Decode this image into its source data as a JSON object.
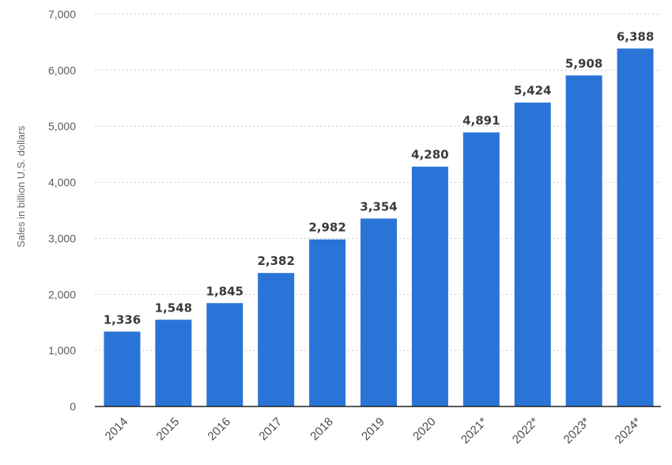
{
  "chart_data": {
    "type": "bar",
    "categories": [
      "2014",
      "2015",
      "2016",
      "2017",
      "2018",
      "2019",
      "2020",
      "2021*",
      "2022*",
      "2023*",
      "2024*"
    ],
    "values": [
      1336,
      1548,
      1845,
      2382,
      2982,
      3354,
      4280,
      4891,
      5424,
      5908,
      6388
    ],
    "value_labels": [
      "1,336",
      "1,548",
      "1,845",
      "2,382",
      "2,982",
      "3,354",
      "4,280",
      "4,891",
      "5,424",
      "5,908",
      "6,388"
    ],
    "title": "",
    "xlabel": "",
    "ylabel": "Sales in billion U.S. dollars",
    "ylim": [
      0,
      7000
    ],
    "yticks": [
      0,
      1000,
      2000,
      3000,
      4000,
      5000,
      6000,
      7000
    ],
    "ytick_labels": [
      "0",
      "1,000",
      "2,000",
      "3,000",
      "4,000",
      "5,000",
      "6,000",
      "7,000"
    ],
    "grid": true,
    "bar_color": "#2a74d8",
    "grid_color": "#c9c9c9",
    "axis_color": "#222222"
  }
}
